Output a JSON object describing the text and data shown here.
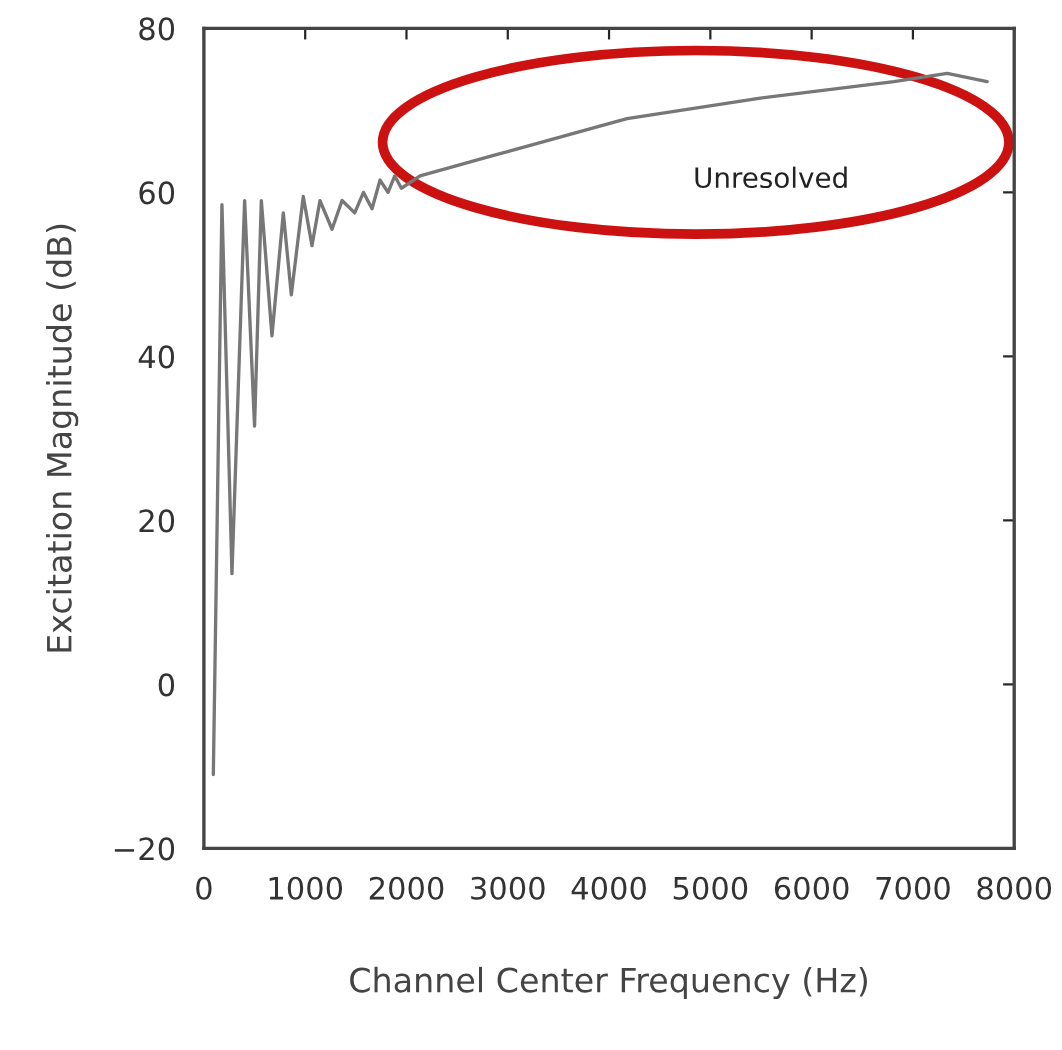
{
  "chart_data": {
    "type": "line",
    "xlabel": "Channel Center Frequency (Hz)",
    "ylabel": "Excitation Magnitude (dB)",
    "x": [
      93,
      178,
      277,
      402,
      500,
      567,
      672,
      784,
      863,
      981,
      1067,
      1146,
      1265,
      1364,
      1489,
      1575,
      1660,
      1739,
      1818,
      1884,
      1950,
      2134,
      2860,
      4177,
      5494,
      6812,
      7338,
      7733
    ],
    "series": [
      {
        "color": "#777777",
        "values": [
          -11,
          58.5,
          13.5,
          59,
          31.5,
          59,
          42.5,
          57.5,
          47.5,
          59.5,
          53.5,
          59,
          55.5,
          59,
          57.5,
          60,
          58,
          61.5,
          60,
          62,
          60.5,
          62,
          64.5,
          69,
          71.5,
          73.5,
          74.5,
          73.5
        ]
      }
    ],
    "xlim": [
      0,
      8000
    ],
    "ylim": [
      -20,
      80
    ],
    "xticks": [
      0,
      1000,
      2000,
      3000,
      4000,
      5000,
      6000,
      7000,
      8000
    ],
    "yticks": [
      -20,
      0,
      20,
      40,
      60,
      80
    ],
    "annotations": [
      "Unresolved"
    ],
    "grid": false,
    "legend": false,
    "marker": "none",
    "line_style": "solid"
  }
}
